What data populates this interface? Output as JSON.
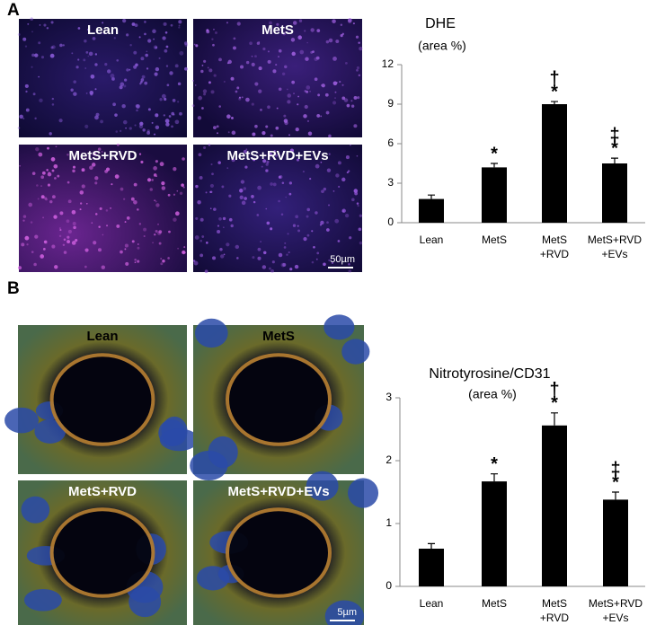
{
  "chart_data": [
    {
      "type": "bar",
      "title": "DHE",
      "subtitle": "(area %)",
      "categories": [
        [
          "Lean"
        ],
        [
          "MetS"
        ],
        [
          "MetS",
          "+RVD"
        ],
        [
          "MetS+RVD",
          "+EVs"
        ]
      ],
      "values": [
        1.8,
        4.2,
        9.0,
        4.5
      ],
      "errors": [
        0.3,
        0.3,
        0.2,
        0.4
      ],
      "markers": [
        null,
        [
          "*"
        ],
        [
          "†",
          "*"
        ],
        [
          "‡",
          "*"
        ]
      ],
      "color": "#000000",
      "ylim": [
        0,
        12
      ],
      "yticks": [
        0,
        3,
        6,
        9,
        12
      ]
    },
    {
      "type": "bar",
      "title": "Nitrotyrosine/CD31",
      "subtitle": "(area %)",
      "categories": [
        [
          "Lean"
        ],
        [
          "MetS"
        ],
        [
          "MetS",
          "+RVD"
        ],
        [
          "MetS+RVD",
          "+EVs"
        ]
      ],
      "values": [
        0.6,
        1.67,
        2.56,
        1.38
      ],
      "errors": [
        0.08,
        0.12,
        0.2,
        0.12
      ],
      "markers": [
        null,
        [
          "*"
        ],
        [
          "†",
          "*"
        ],
        [
          "‡",
          "*"
        ]
      ],
      "color": "#000000",
      "ylim": [
        0,
        3
      ],
      "yticks": [
        0,
        1,
        2,
        3
      ]
    }
  ],
  "panels": [
    {
      "label": "A",
      "images": [
        "Lean",
        "MetS",
        "MetS+RVD",
        "MetS+RVD+EVs"
      ],
      "scale_bar": "50µm"
    },
    {
      "label": "B",
      "images": [
        "Lean",
        "MetS",
        "MetS+RVD",
        "MetS+RVD+EVs"
      ],
      "scale_bar": "5µm"
    }
  ]
}
